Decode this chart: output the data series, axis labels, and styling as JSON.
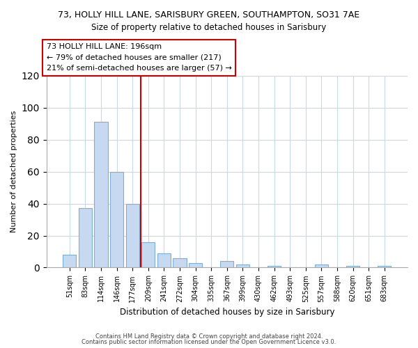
{
  "title1": "73, HOLLY HILL LANE, SARISBURY GREEN, SOUTHAMPTON, SO31 7AE",
  "title2": "Size of property relative to detached houses in Sarisbury",
  "xlabel": "Distribution of detached houses by size in Sarisbury",
  "ylabel": "Number of detached properties",
  "bar_labels": [
    "51sqm",
    "83sqm",
    "114sqm",
    "146sqm",
    "177sqm",
    "209sqm",
    "241sqm",
    "272sqm",
    "304sqm",
    "335sqm",
    "367sqm",
    "399sqm",
    "430sqm",
    "462sqm",
    "493sqm",
    "525sqm",
    "557sqm",
    "588sqm",
    "620sqm",
    "651sqm",
    "683sqm"
  ],
  "bar_values": [
    8,
    37,
    91,
    60,
    40,
    16,
    9,
    6,
    3,
    0,
    4,
    2,
    0,
    1,
    0,
    0,
    2,
    0,
    1,
    0,
    1
  ],
  "bar_color": "#c6d9f0",
  "bar_edge_color": "#7bafd4",
  "ylim": [
    0,
    120
  ],
  "yticks": [
    0,
    20,
    40,
    60,
    80,
    100,
    120
  ],
  "vline_x": 4.5,
  "vline_color": "#cc0000",
  "annotation_title": "73 HOLLY HILL LANE: 196sqm",
  "annotation_line1": "← 79% of detached houses are smaller (217)",
  "annotation_line2": "21% of semi-detached houses are larger (57) →",
  "footer1": "Contains HM Land Registry data © Crown copyright and database right 2024.",
  "footer2": "Contains public sector information licensed under the Open Government Licence v3.0.",
  "background_color": "#ffffff",
  "grid_color": "#c8d8e8"
}
